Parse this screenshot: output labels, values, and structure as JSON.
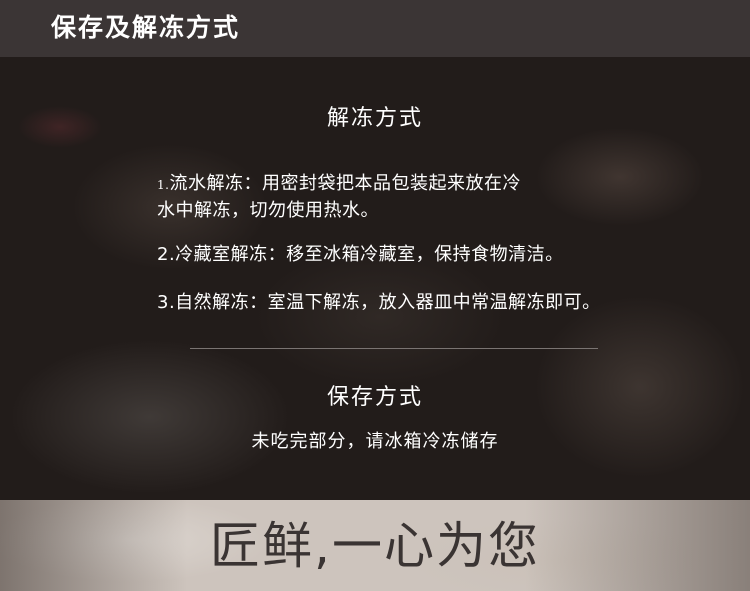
{
  "header": {
    "title": "保存及解冻方式"
  },
  "thaw": {
    "title": "解冻方式",
    "methods": [
      {
        "num": "1.",
        "text_line1": "流水解冻：用密封袋把本品包装起来放在冷",
        "text_line2": "水中解冻，切勿使用热水。"
      },
      {
        "text": "2.冷藏室解冻：移至冰箱冷藏室，保持食物清洁。"
      },
      {
        "text": "3.自然解冻：室温下解冻，放入器皿中常温解冻即可。"
      }
    ]
  },
  "storage": {
    "title": "保存方式",
    "text": "未吃完部分，请冰箱冷冻储存"
  },
  "banner": {
    "slogan": "匠鲜,一心为您"
  }
}
